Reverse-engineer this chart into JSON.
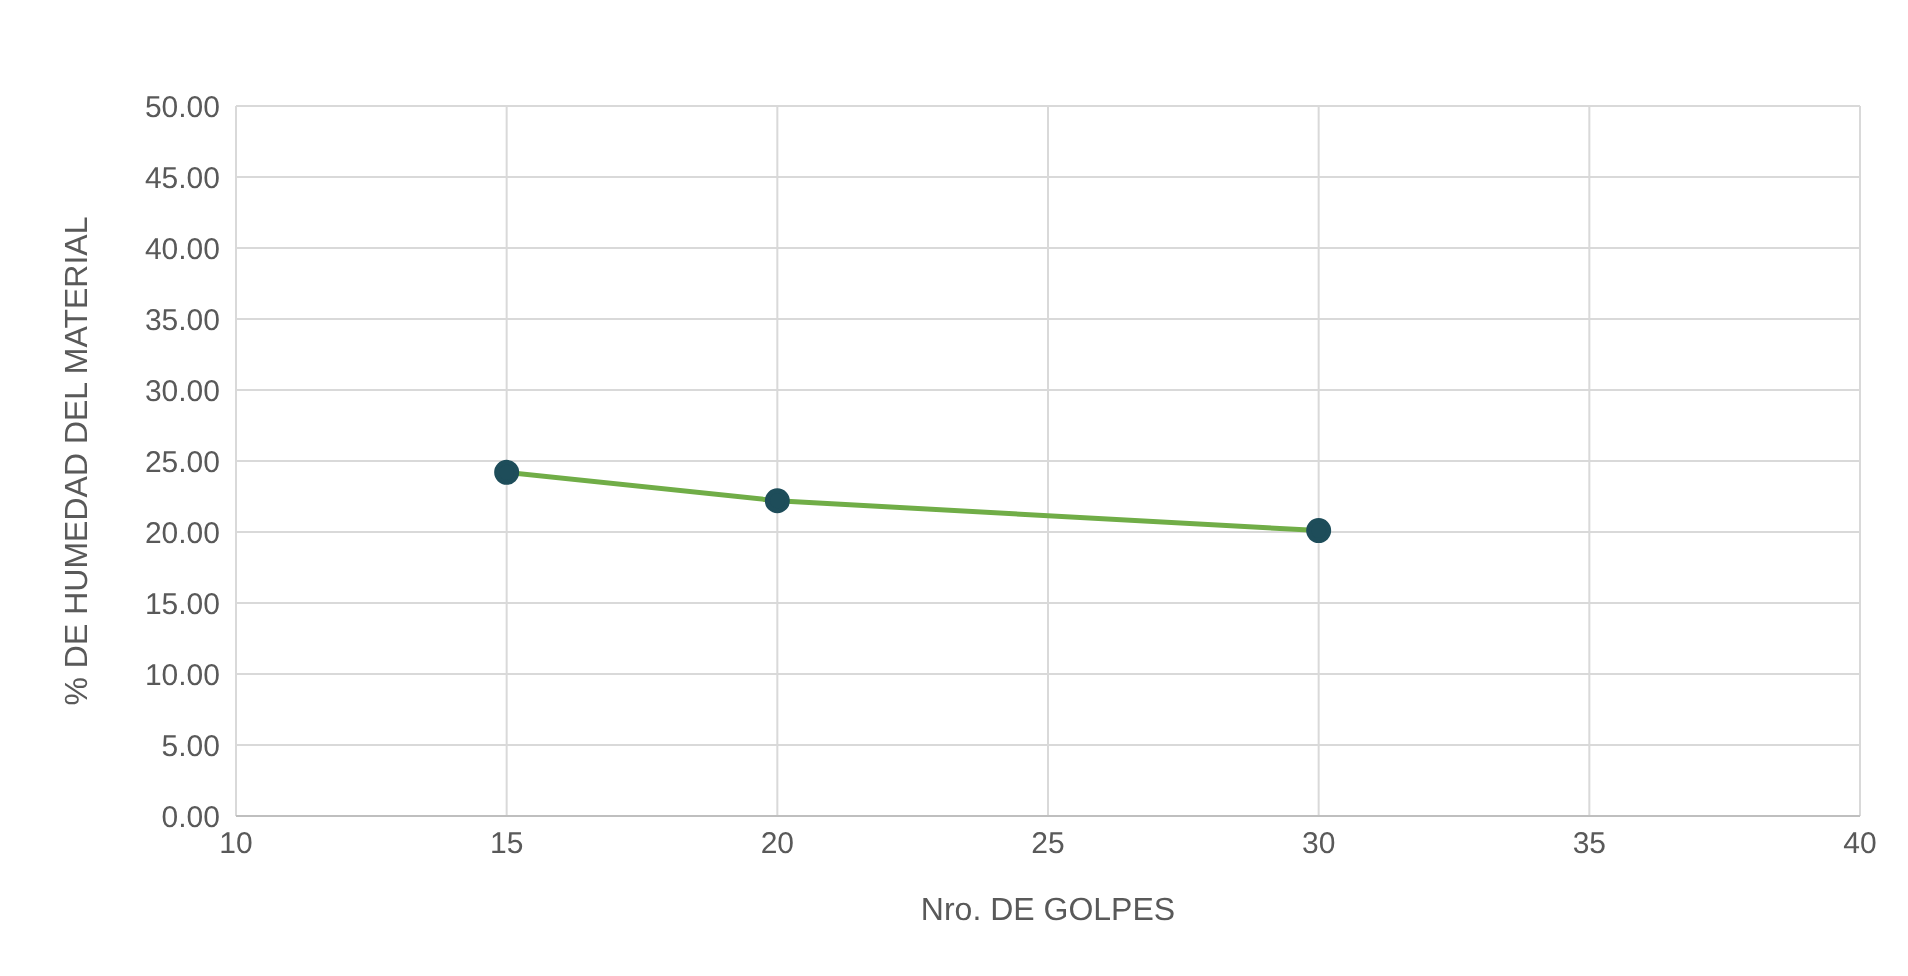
{
  "chart_data": {
    "type": "line",
    "xlabel": "Nro. DE GOLPES",
    "ylabel": "% DE HUMEDAD DEL MATERIAL",
    "x": [
      15,
      20,
      30
    ],
    "series": [
      {
        "color": "#70ad47",
        "values": [
          24.2,
          22.2,
          20.1
        ]
      }
    ],
    "marker": "circle",
    "line_style": "solid",
    "grid": true,
    "legend": false,
    "xlim": [
      10,
      40
    ],
    "xticks": [
      10,
      15,
      20,
      25,
      30,
      35,
      40
    ],
    "ylim": [
      0,
      50
    ],
    "yticks": [
      {
        "value": 0,
        "label": "0.00"
      },
      {
        "value": 5,
        "label": "5.00"
      },
      {
        "value": 10,
        "label": "10.00"
      },
      {
        "value": 15,
        "label": "15.00"
      },
      {
        "value": 20,
        "label": "20.00"
      },
      {
        "value": 25,
        "label": "25.00"
      },
      {
        "value": 30,
        "label": "30.00"
      },
      {
        "value": 35,
        "label": "35.00"
      },
      {
        "value": 40,
        "label": "40.00"
      },
      {
        "value": 45,
        "label": "45.00"
      },
      {
        "value": 50,
        "label": "50.00"
      }
    ]
  }
}
